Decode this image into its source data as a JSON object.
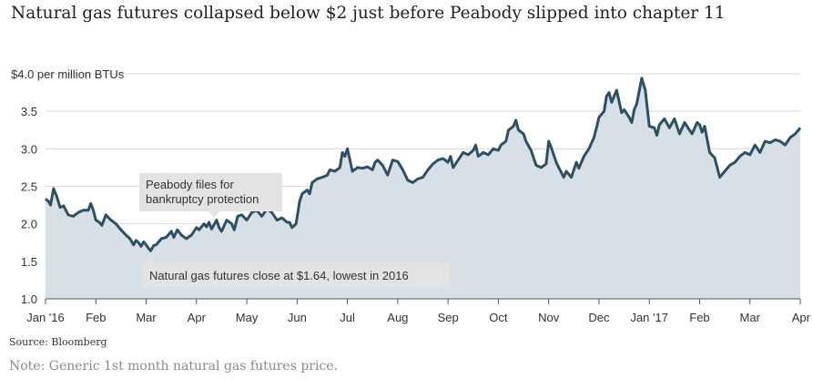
{
  "title": "Natural gas futures collapsed below $2 just before Peabody slipped into chapter 11",
  "source": "Source: Bloomberg",
  "note": "Note: Generic 1st month natural gas futures price.",
  "colors": {
    "line": "#2e5063",
    "area": "#d6e0e6",
    "grid": "#d9d9d9",
    "annotation_bg": "#e3e3e3"
  },
  "chart_data": {
    "type": "area",
    "ylabel": "$4.0 per million BTUs",
    "ylim": [
      1.0,
      4.0
    ],
    "y_ticks": [
      1.0,
      1.5,
      2.0,
      2.5,
      3.0,
      3.5,
      4.0
    ],
    "y_tick_labels": [
      "1.0",
      "1.5",
      "2.0",
      "2.5",
      "3.0",
      "3.5",
      ""
    ],
    "x_ticks": [
      "Jan '16",
      "Feb",
      "Mar",
      "Apr",
      "May",
      "Jun",
      "Jul",
      "Aug",
      "Sep",
      "Oct",
      "Nov",
      "Dec",
      "Jan '17",
      "Feb",
      "Mar",
      "Apr"
    ],
    "x_range_months": [
      0,
      15
    ],
    "series": [
      {
        "name": "Generic 1st month natural gas futures",
        "points": [
          [
            0.0,
            2.33
          ],
          [
            0.06,
            2.3
          ],
          [
            0.1,
            2.25
          ],
          [
            0.16,
            2.47
          ],
          [
            0.22,
            2.37
          ],
          [
            0.29,
            2.22
          ],
          [
            0.36,
            2.24
          ],
          [
            0.45,
            2.12
          ],
          [
            0.55,
            2.1
          ],
          [
            0.65,
            2.15
          ],
          [
            0.75,
            2.18
          ],
          [
            0.85,
            2.18
          ],
          [
            0.9,
            2.27
          ],
          [
            0.95,
            2.18
          ],
          [
            1.0,
            2.05
          ],
          [
            1.07,
            2.02
          ],
          [
            1.12,
            1.98
          ],
          [
            1.2,
            2.12
          ],
          [
            1.3,
            2.05
          ],
          [
            1.4,
            2.0
          ],
          [
            1.5,
            1.92
          ],
          [
            1.6,
            1.85
          ],
          [
            1.68,
            1.8
          ],
          [
            1.75,
            1.72
          ],
          [
            1.8,
            1.78
          ],
          [
            1.85,
            1.75
          ],
          [
            1.9,
            1.7
          ],
          [
            1.95,
            1.76
          ],
          [
            2.0,
            1.72
          ],
          [
            2.05,
            1.67
          ],
          [
            2.09,
            1.64
          ],
          [
            2.15,
            1.71
          ],
          [
            2.2,
            1.72
          ],
          [
            2.3,
            1.8
          ],
          [
            2.4,
            1.82
          ],
          [
            2.5,
            1.9
          ],
          [
            2.55,
            1.82
          ],
          [
            2.62,
            1.92
          ],
          [
            2.7,
            1.85
          ],
          [
            2.8,
            1.8
          ],
          [
            2.9,
            1.85
          ],
          [
            3.0,
            1.95
          ],
          [
            3.05,
            1.92
          ],
          [
            3.15,
            2.0
          ],
          [
            3.2,
            1.96
          ],
          [
            3.25,
            2.02
          ],
          [
            3.3,
            1.93
          ],
          [
            3.4,
            2.05
          ],
          [
            3.45,
            1.95
          ],
          [
            3.5,
            1.9
          ],
          [
            3.6,
            2.05
          ],
          [
            3.7,
            2.0
          ],
          [
            3.75,
            1.92
          ],
          [
            3.82,
            2.1
          ],
          [
            3.9,
            2.12
          ],
          [
            4.0,
            2.05
          ],
          [
            4.1,
            2.15
          ],
          [
            4.2,
            2.18
          ],
          [
            4.3,
            2.1
          ],
          [
            4.4,
            2.2
          ],
          [
            4.5,
            2.15
          ],
          [
            4.6,
            2.05
          ],
          [
            4.7,
            2.08
          ],
          [
            4.8,
            2.02
          ],
          [
            4.85,
            2.02
          ],
          [
            4.9,
            1.95
          ],
          [
            4.98,
            2.0
          ],
          [
            5.05,
            2.3
          ],
          [
            5.1,
            2.4
          ],
          [
            5.2,
            2.45
          ],
          [
            5.25,
            2.4
          ],
          [
            5.3,
            2.55
          ],
          [
            5.4,
            2.6
          ],
          [
            5.5,
            2.62
          ],
          [
            5.6,
            2.65
          ],
          [
            5.65,
            2.72
          ],
          [
            5.75,
            2.7
          ],
          [
            5.85,
            2.75
          ],
          [
            5.9,
            2.95
          ],
          [
            5.95,
            2.9
          ],
          [
            6.0,
            3.0
          ],
          [
            6.1,
            2.7
          ],
          [
            6.2,
            2.75
          ],
          [
            6.3,
            2.74
          ],
          [
            6.4,
            2.76
          ],
          [
            6.5,
            2.72
          ],
          [
            6.55,
            2.82
          ],
          [
            6.6,
            2.85
          ],
          [
            6.7,
            2.78
          ],
          [
            6.8,
            2.65
          ],
          [
            6.9,
            2.85
          ],
          [
            7.0,
            2.83
          ],
          [
            7.1,
            2.72
          ],
          [
            7.2,
            2.58
          ],
          [
            7.3,
            2.55
          ],
          [
            7.4,
            2.6
          ],
          [
            7.5,
            2.62
          ],
          [
            7.6,
            2.72
          ],
          [
            7.7,
            2.8
          ],
          [
            7.8,
            2.85
          ],
          [
            7.9,
            2.87
          ],
          [
            8.0,
            2.82
          ],
          [
            8.05,
            2.9
          ],
          [
            8.1,
            2.75
          ],
          [
            8.2,
            2.85
          ],
          [
            8.3,
            2.95
          ],
          [
            8.4,
            2.92
          ],
          [
            8.5,
            2.98
          ],
          [
            8.55,
            3.05
          ],
          [
            8.6,
            2.9
          ],
          [
            8.7,
            2.95
          ],
          [
            8.8,
            2.92
          ],
          [
            8.9,
            3.0
          ],
          [
            9.0,
            2.98
          ],
          [
            9.05,
            3.05
          ],
          [
            9.15,
            3.1
          ],
          [
            9.2,
            3.25
          ],
          [
            9.3,
            3.3
          ],
          [
            9.35,
            3.38
          ],
          [
            9.4,
            3.25
          ],
          [
            9.5,
            3.2
          ],
          [
            9.55,
            3.1
          ],
          [
            9.65,
            2.98
          ],
          [
            9.75,
            2.78
          ],
          [
            9.85,
            2.75
          ],
          [
            9.95,
            2.8
          ],
          [
            10.0,
            3.1
          ],
          [
            10.05,
            3.02
          ],
          [
            10.15,
            2.82
          ],
          [
            10.2,
            2.75
          ],
          [
            10.3,
            2.62
          ],
          [
            10.35,
            2.7
          ],
          [
            10.45,
            2.62
          ],
          [
            10.55,
            2.82
          ],
          [
            10.6,
            2.74
          ],
          [
            10.7,
            2.9
          ],
          [
            10.8,
            3.0
          ],
          [
            10.9,
            3.15
          ],
          [
            10.95,
            3.28
          ],
          [
            11.0,
            3.42
          ],
          [
            11.1,
            3.5
          ],
          [
            11.15,
            3.7
          ],
          [
            11.2,
            3.75
          ],
          [
            11.25,
            3.62
          ],
          [
            11.35,
            3.78
          ],
          [
            11.45,
            3.48
          ],
          [
            11.5,
            3.52
          ],
          [
            11.6,
            3.42
          ],
          [
            11.65,
            3.35
          ],
          [
            11.7,
            3.52
          ],
          [
            11.75,
            3.6
          ],
          [
            11.85,
            3.94
          ],
          [
            11.92,
            3.78
          ],
          [
            12.0,
            3.3
          ],
          [
            12.1,
            3.28
          ],
          [
            12.15,
            3.18
          ],
          [
            12.2,
            3.32
          ],
          [
            12.3,
            3.4
          ],
          [
            12.4,
            3.28
          ],
          [
            12.5,
            3.4
          ],
          [
            12.6,
            3.2
          ],
          [
            12.7,
            3.35
          ],
          [
            12.8,
            3.25
          ],
          [
            12.85,
            3.2
          ],
          [
            12.95,
            3.35
          ],
          [
            13.0,
            3.32
          ],
          [
            13.05,
            3.22
          ],
          [
            13.1,
            3.3
          ],
          [
            13.2,
            2.95
          ],
          [
            13.3,
            2.88
          ],
          [
            13.4,
            2.62
          ],
          [
            13.5,
            2.7
          ],
          [
            13.6,
            2.78
          ],
          [
            13.7,
            2.82
          ],
          [
            13.8,
            2.9
          ],
          [
            13.9,
            2.95
          ],
          [
            14.0,
            2.92
          ],
          [
            14.1,
            3.05
          ],
          [
            14.2,
            2.95
          ],
          [
            14.3,
            3.1
          ],
          [
            14.4,
            3.08
          ],
          [
            14.5,
            3.12
          ],
          [
            14.6,
            3.1
          ],
          [
            14.7,
            3.05
          ],
          [
            14.8,
            3.15
          ],
          [
            14.9,
            3.2
          ],
          [
            15.0,
            3.28
          ]
        ]
      }
    ],
    "annotations": [
      {
        "name": "bankruptcy",
        "lines": [
          "Peabody files for",
          "bankruptcy protection"
        ],
        "x_month": 3.35,
        "y": 1.97
      },
      {
        "name": "low",
        "text": "Natural gas futures close at $1.64, lowest in 2016",
        "x_month": 2.09,
        "y": 1.64
      }
    ]
  }
}
